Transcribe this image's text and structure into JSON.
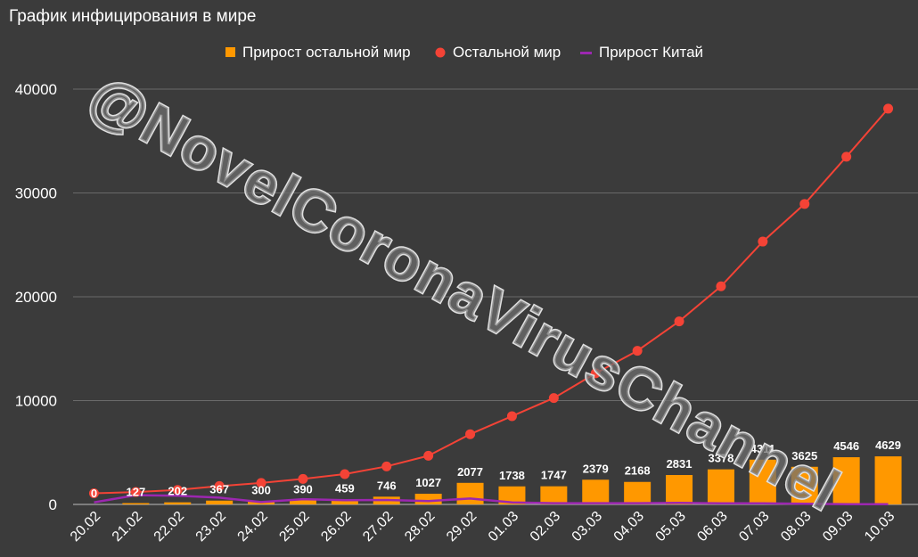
{
  "chart_data": {
    "type": "bar",
    "title": "График инфицирования в мире",
    "categories": [
      "20.02",
      "21.02",
      "22.02",
      "23.02",
      "24.02",
      "25.02",
      "26.02",
      "27.02",
      "28.02",
      "29.02",
      "01.03",
      "02.03",
      "03.03",
      "04.03",
      "05.03",
      "06.03",
      "07.03",
      "08.03",
      "09.03",
      "10.03"
    ],
    "series": [
      {
        "name": "Прирост остальной мир",
        "kind": "bar",
        "color": "#ff9800",
        "values": [
          0,
          127,
          202,
          367,
          300,
          390,
          459,
          746,
          1027,
          2077,
          1738,
          1747,
          2379,
          2168,
          2831,
          3378,
          4311,
          3625,
          4546,
          4629
        ]
      },
      {
        "name": "Остальной мир",
        "kind": "line-markers",
        "color": "#f44336",
        "values": [
          1070,
          1197,
          1399,
          1766,
          2066,
          2456,
          2915,
          3661,
          4688,
          6765,
          8503,
          10250,
          12629,
          14797,
          17628,
          21006,
          25317,
          28942,
          33488,
          38117
        ]
      },
      {
        "name": "Прирост Китай",
        "kind": "line",
        "color": "#9c27b0",
        "values": [
          200,
          890,
          830,
          650,
          220,
          510,
          410,
          430,
          330,
          570,
          200,
          120,
          120,
          120,
          150,
          100,
          100,
          60,
          20,
          20
        ]
      }
    ],
    "yticks": [
      0,
      10000,
      20000,
      30000,
      40000
    ],
    "ylim": [
      0,
      40000
    ],
    "grid": true,
    "legend": "top-center"
  },
  "watermark": "@NovelCoronaVirusChannel"
}
